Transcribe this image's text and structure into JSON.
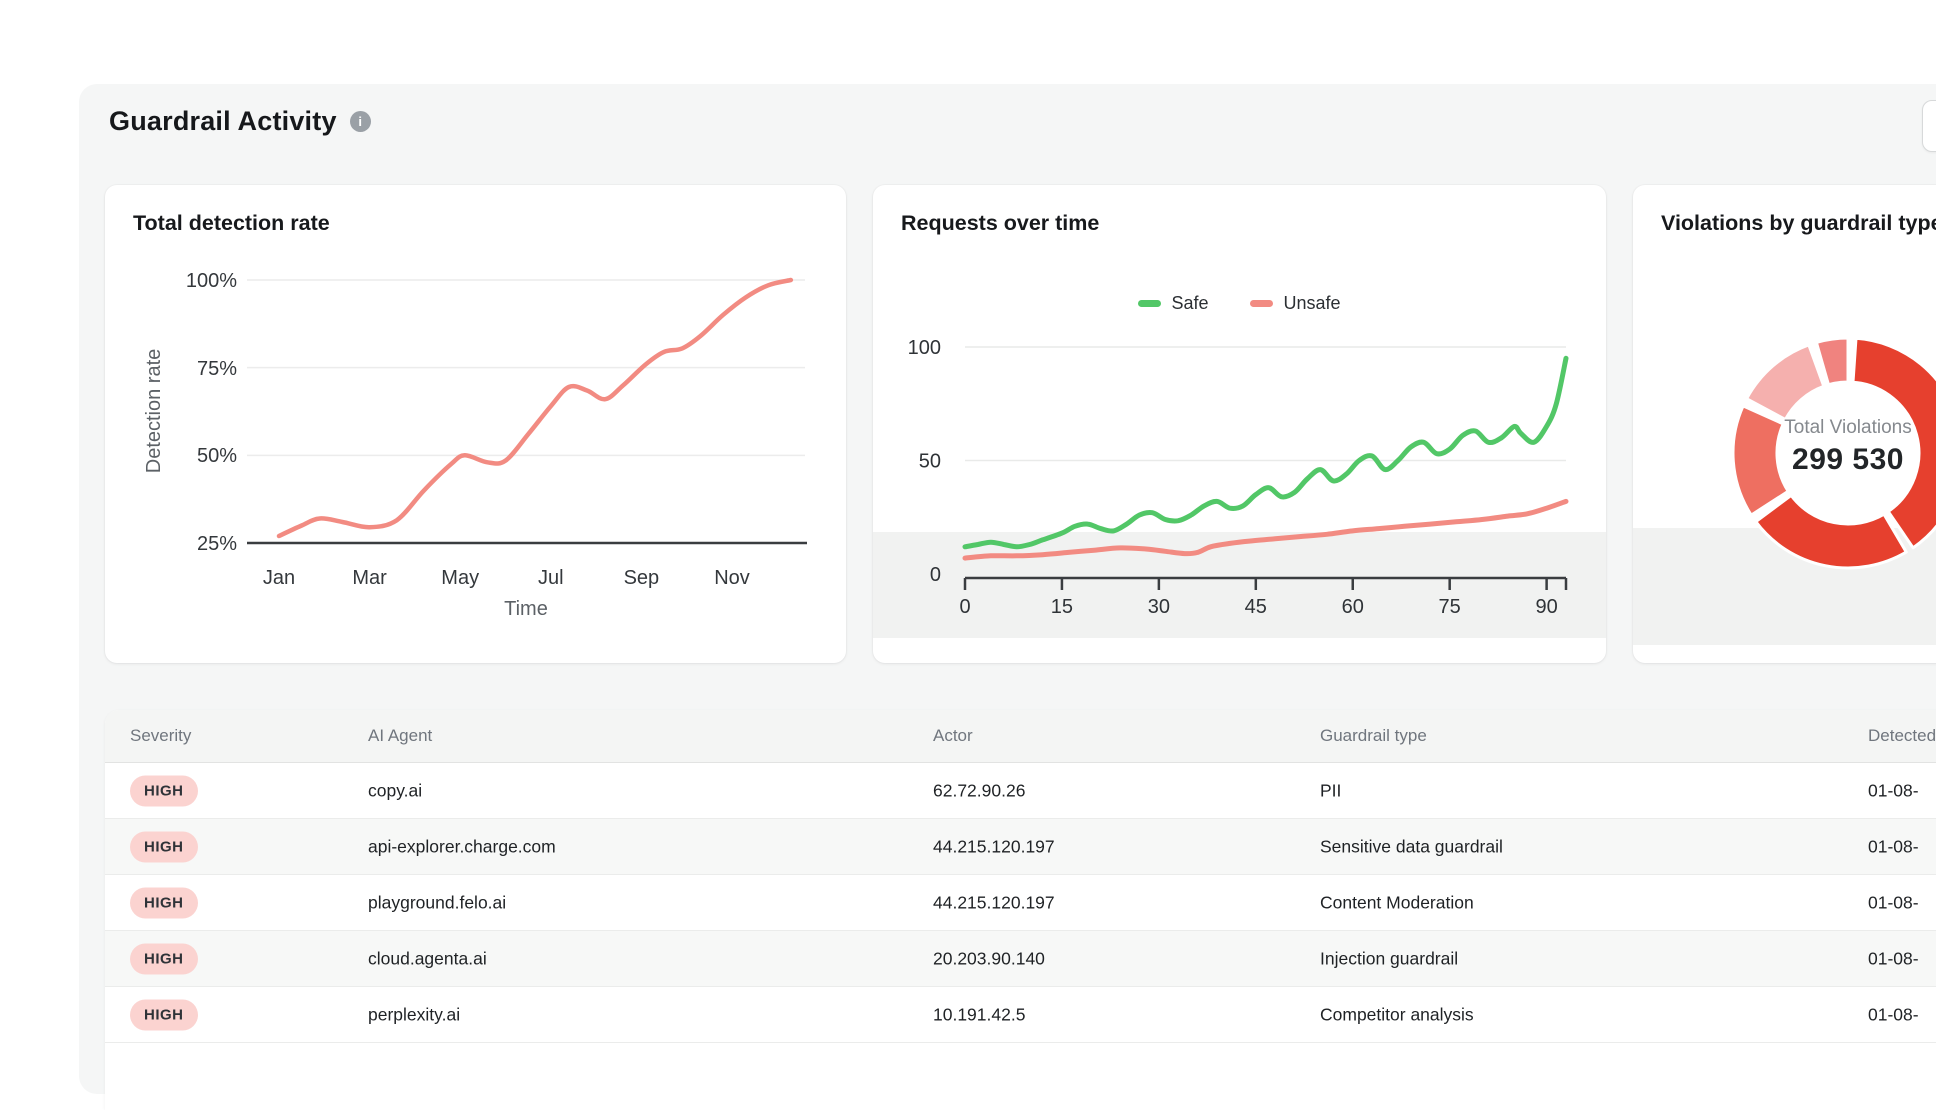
{
  "header": {
    "title": "Guardrail Activity",
    "info_icon": "i"
  },
  "chart_data": [
    {
      "type": "line",
      "title": "Total detection rate",
      "xlabel": "Time",
      "ylabel": "Detection rate",
      "x_ticks": [
        "Jan",
        "Mar",
        "May",
        "Jul",
        "Sep",
        "Nov"
      ],
      "x_tick_months": [
        0,
        2,
        4,
        6,
        8,
        10
      ],
      "y_ticks": [
        "100%",
        "75%",
        "50%",
        "25%"
      ],
      "ylim": [
        25,
        100
      ],
      "xlim": [
        0,
        11.5
      ],
      "grid": true,
      "series": [
        {
          "name": "Detection rate",
          "color": "#f28b82",
          "points": [
            [
              0,
              27
            ],
            [
              0.5,
              30
            ],
            [
              0.9,
              32
            ],
            [
              1.4,
              31
            ],
            [
              2,
              29.5
            ],
            [
              2.6,
              31.5
            ],
            [
              3.2,
              40
            ],
            [
              3.8,
              47.5
            ],
            [
              4.1,
              50
            ],
            [
              4.6,
              48
            ],
            [
              5,
              48.5
            ],
            [
              5.5,
              56
            ],
            [
              6,
              64
            ],
            [
              6.4,
              69.5
            ],
            [
              6.8,
              68.5
            ],
            [
              7.2,
              66
            ],
            [
              7.6,
              70
            ],
            [
              8.1,
              76
            ],
            [
              8.5,
              79.5
            ],
            [
              8.9,
              80.5
            ],
            [
              9.3,
              84
            ],
            [
              9.8,
              90
            ],
            [
              10.3,
              95
            ],
            [
              10.8,
              98.5
            ],
            [
              11.3,
              100
            ]
          ]
        }
      ]
    },
    {
      "type": "line",
      "title": "Requests over time",
      "legend_position": "top",
      "x_ticks": [
        0,
        15,
        30,
        45,
        60,
        75,
        90
      ],
      "y_ticks": [
        100,
        50,
        0
      ],
      "ylim": [
        0,
        105
      ],
      "xlim": [
        0,
        93
      ],
      "grid": true,
      "series": [
        {
          "name": "Safe",
          "color": "#52c767",
          "points": [
            [
              0,
              12
            ],
            [
              2,
              13
            ],
            [
              4,
              14
            ],
            [
              6,
              13
            ],
            [
              8,
              12
            ],
            [
              10,
              13
            ],
            [
              12,
              15
            ],
            [
              15,
              18
            ],
            [
              17,
              21
            ],
            [
              19,
              22
            ],
            [
              21,
              20
            ],
            [
              23,
              19
            ],
            [
              25,
              22
            ],
            [
              27,
              26
            ],
            [
              29,
              27
            ],
            [
              31,
              24
            ],
            [
              33,
              23.5
            ],
            [
              35,
              26
            ],
            [
              37,
              30
            ],
            [
              39,
              32
            ],
            [
              41,
              29
            ],
            [
              43,
              30
            ],
            [
              45,
              35
            ],
            [
              47,
              38
            ],
            [
              49,
              34
            ],
            [
              51,
              36
            ],
            [
              53,
              42
            ],
            [
              55,
              46
            ],
            [
              57,
              41
            ],
            [
              59,
              44
            ],
            [
              61,
              50
            ],
            [
              63,
              52
            ],
            [
              65,
              46
            ],
            [
              67,
              50
            ],
            [
              69,
              56
            ],
            [
              71,
              58
            ],
            [
              73,
              53
            ],
            [
              75,
              55
            ],
            [
              77,
              61
            ],
            [
              79,
              63
            ],
            [
              81,
              58
            ],
            [
              83,
              60
            ],
            [
              85,
              65
            ],
            [
              86,
              62
            ],
            [
              88,
              58
            ],
            [
              90,
              65
            ],
            [
              91.5,
              75
            ],
            [
              93,
              95
            ]
          ]
        },
        {
          "name": "Unsafe",
          "color": "#f28b82",
          "points": [
            [
              0,
              7
            ],
            [
              4,
              8
            ],
            [
              8,
              8
            ],
            [
              12,
              8.5
            ],
            [
              16,
              9.5
            ],
            [
              20,
              10.5
            ],
            [
              24,
              11.5
            ],
            [
              28,
              11
            ],
            [
              31,
              10
            ],
            [
              34,
              9
            ],
            [
              36,
              9.5
            ],
            [
              38,
              12
            ],
            [
              41,
              13.5
            ],
            [
              44,
              14.5
            ],
            [
              48,
              15.5
            ],
            [
              52,
              16.5
            ],
            [
              56,
              17.5
            ],
            [
              60,
              19
            ],
            [
              64,
              20
            ],
            [
              68,
              21
            ],
            [
              72,
              22
            ],
            [
              76,
              23
            ],
            [
              80,
              24
            ],
            [
              84,
              25.5
            ],
            [
              87,
              26.5
            ],
            [
              90,
              29
            ],
            [
              93,
              32
            ]
          ]
        }
      ]
    },
    {
      "type": "pie",
      "title": "Violations by guardrail type",
      "center_label": "Total Violations",
      "center_value": "299 530",
      "donut": true,
      "segments": [
        {
          "value": 124700,
          "color": "#e6402e"
        },
        {
          "value": 73800,
          "color": "#e6402e"
        },
        {
          "value": 50100,
          "color": "#ee6f61"
        },
        {
          "value": 36900,
          "color": "#f5b0ae"
        },
        {
          "value": 14030,
          "color": "#f0837f"
        }
      ]
    }
  ],
  "table": {
    "headers": [
      "Severity",
      "AI Agent",
      "Actor",
      "Guardrail type",
      "Detected"
    ],
    "badge_bg": "#fbd3d0",
    "badge_text_color": "#2f3338",
    "rows": [
      [
        "HIGH",
        "copy.ai",
        "62.72.90.26",
        "PII",
        "01-08-"
      ],
      [
        "HIGH",
        "api-explorer.charge.com",
        "44.215.120.197",
        "Sensitive data guardrail",
        "01-08-"
      ],
      [
        "HIGH",
        "playground.felo.ai",
        "44.215.120.197",
        "Content Moderation",
        "01-08-"
      ],
      [
        "HIGH",
        "cloud.agenta.ai",
        "20.203.90.140",
        "Injection guardrail",
        "01-08-"
      ],
      [
        "HIGH",
        "perplexity.ai",
        "10.191.42.5",
        "Competitor analysis",
        "01-08-"
      ]
    ]
  }
}
